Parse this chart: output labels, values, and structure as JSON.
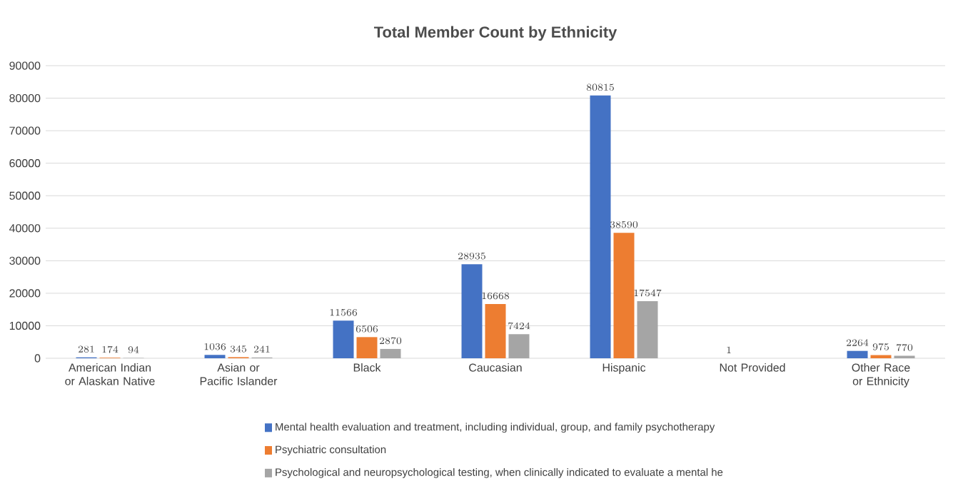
{
  "chart_data": {
    "type": "bar",
    "title": "Total Member Count by Ethnicity",
    "categories": [
      "American Indian or Alaskan Native",
      "Asian or Pacific Islander",
      "Black",
      "Caucasian",
      "Hispanic",
      "Not Provided",
      "Other Race or Ethnicity"
    ],
    "series": [
      {
        "name": "Mental health evaluation and treatment, including individual, group, and family psychotherapy",
        "color": "#4472c4",
        "values": [
          281,
          1036,
          11566,
          28935,
          80815,
          1,
          2264
        ]
      },
      {
        "name": "Psychiatric consultation",
        "color": "#ed7d31",
        "values": [
          174,
          345,
          6506,
          16668,
          38590,
          null,
          975
        ]
      },
      {
        "name": "Psychological and neuropsychological testing, when clinically indicated to evaluate a mental he",
        "color": "#a5a5a5",
        "values": [
          94,
          241,
          2870,
          7424,
          17547,
          null,
          770
        ]
      }
    ],
    "ylim": [
      0,
      90000
    ],
    "yticks": [
      0,
      10000,
      20000,
      30000,
      40000,
      50000,
      60000,
      70000,
      80000,
      90000
    ],
    "grid": "y",
    "legend": "bottom",
    "data_labels": true
  }
}
